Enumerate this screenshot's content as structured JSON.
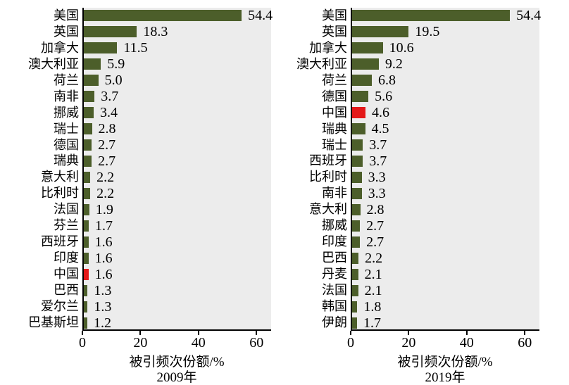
{
  "colors": {
    "bar": "#4C5E2A",
    "highlight": "#E41818",
    "plot_bg": "#ECECEC",
    "axis": "#000000"
  },
  "chart_data": [
    {
      "type": "bar",
      "orientation": "horizontal",
      "xlabel": "被引频次份额/%",
      "sublabel": "2009年",
      "categories": [
        "美国",
        "英国",
        "加拿大",
        "澳大利亚",
        "荷兰",
        "南非",
        "挪威",
        "瑞士",
        "德国",
        "瑞典",
        "意大利",
        "比利时",
        "法国",
        "芬兰",
        "西班牙",
        "印度",
        "中国",
        "巴西",
        "爱尔兰",
        "巴基斯坦"
      ],
      "values": [
        54.4,
        18.3,
        11.5,
        5.9,
        5.0,
        3.7,
        3.4,
        2.8,
        2.7,
        2.7,
        2.2,
        2.2,
        1.9,
        1.7,
        1.6,
        1.6,
        1.6,
        1.3,
        1.3,
        1.2
      ],
      "highlight_category": "中国",
      "xlim": [
        0,
        65
      ],
      "xticks": [
        0,
        20,
        40,
        60
      ],
      "grid": false,
      "legend": false,
      "value_labels": true
    },
    {
      "type": "bar",
      "orientation": "horizontal",
      "xlabel": "被引频次份额/%",
      "sublabel": "2019年",
      "categories": [
        "美国",
        "英国",
        "加拿大",
        "澳大利亚",
        "荷兰",
        "德国",
        "中国",
        "瑞典",
        "瑞士",
        "西班牙",
        "比利时",
        "南非",
        "意大利",
        "挪威",
        "印度",
        "巴西",
        "丹麦",
        "法国",
        "韩国",
        "伊朗"
      ],
      "values": [
        54.4,
        19.5,
        10.6,
        9.2,
        6.8,
        5.6,
        4.6,
        4.5,
        3.7,
        3.7,
        3.3,
        3.3,
        2.8,
        2.7,
        2.7,
        2.2,
        2.1,
        2.1,
        1.8,
        1.7
      ],
      "highlight_category": "中国",
      "xlim": [
        0,
        65
      ],
      "xticks": [
        0,
        20,
        40,
        60
      ],
      "grid": false,
      "legend": false,
      "value_labels": true
    }
  ]
}
